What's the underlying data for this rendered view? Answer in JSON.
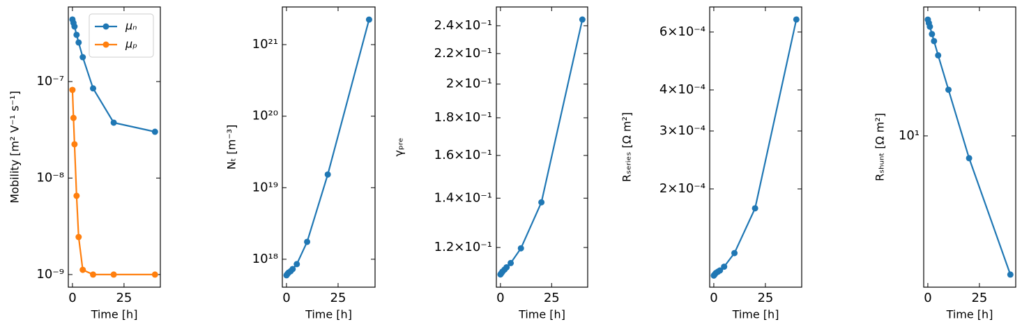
{
  "chart_data": [
    {
      "type": "line",
      "xlabel": "Time [h]",
      "ylabel": "Mobility [m² V⁻¹ s⁻¹]",
      "yscale": "log",
      "legend": "upper right",
      "x": [
        0,
        0.5,
        1,
        2,
        3,
        5,
        10,
        20,
        40
      ],
      "series": [
        {
          "name": "μₙ",
          "color": "#1f77b4",
          "values": [
            4.4e-07,
            4.05e-07,
            3.72e-07,
            3.05e-07,
            2.54e-07,
            1.79e-07,
            8.5e-08,
            3.75e-08,
            3.02e-08
          ]
        },
        {
          "name": "μₚ",
          "color": "#ff7f0e",
          "values": [
            8.2e-08,
            4.2e-08,
            2.24e-08,
            6.55e-09,
            2.45e-09,
            1.12e-09,
            1e-09,
            1e-09,
            1e-09
          ]
        }
      ],
      "xlim": [
        -2,
        42.6
      ],
      "xticks": [
        0,
        25
      ],
      "ylim": [
        7.4e-10,
        5.93e-07
      ],
      "yticks": [
        {
          "value": 1e-09,
          "label": "10⁻⁹"
        },
        {
          "value": 1e-08,
          "label": "10⁻⁸"
        },
        {
          "value": 1e-07,
          "label": "10⁻⁷"
        }
      ]
    },
    {
      "type": "line",
      "xlabel": "Time [h]",
      "ylabel": "Nₜ [m⁻³]",
      "yscale": "log",
      "x": [
        0,
        0.5,
        1,
        2,
        3,
        5,
        10,
        20,
        40
      ],
      "series": [
        {
          "color": "#1f77b4",
          "values": [
            5.97e+17,
            6.24e+17,
            6.5e+17,
            6.8e+17,
            7.3e+17,
            8.55e+17,
            1.75e+18,
            1.53e+19,
            2.24e+21
          ]
        }
      ],
      "xlim": [
        -2,
        42.9
      ],
      "xticks": [
        0,
        25
      ],
      "ylim": [
        4.07e+17,
        3.36e+21
      ],
      "yticks": [
        {
          "value": 1e+18,
          "label": "10¹⁸"
        },
        {
          "value": 1e+19,
          "label": "10¹⁹"
        },
        {
          "value": 1e+20,
          "label": "10²⁰"
        },
        {
          "value": 1e+21,
          "label": "10²¹"
        }
      ]
    },
    {
      "type": "line",
      "xlabel": "Time [h]",
      "ylabel": "γₚᵣₑ",
      "yscale": "log",
      "x": [
        0,
        0.5,
        1,
        2,
        3,
        5,
        10,
        20,
        40
      ],
      "series": [
        {
          "color": "#1f77b4",
          "values": [
            0.1103,
            0.1108,
            0.1113,
            0.112,
            0.1128,
            0.1143,
            0.1197,
            0.1382,
            0.2447
          ]
        }
      ],
      "xlim": [
        -2,
        42.6
      ],
      "xticks": [
        0,
        25
      ],
      "ylim": [
        0.106,
        0.2545
      ],
      "yticks": [
        {
          "value": 0.12,
          "label": "1.2×10⁻¹"
        },
        {
          "value": 0.14,
          "label": "1.4×10⁻¹"
        },
        {
          "value": 0.16,
          "label": "1.6×10⁻¹"
        },
        {
          "value": 0.18,
          "label": "1.8×10⁻¹"
        },
        {
          "value": 0.2,
          "label": "2×10⁻¹"
        },
        {
          "value": 0.22,
          "label": "2.2×10⁻¹"
        },
        {
          "value": 0.24,
          "label": "2.4×10⁻¹"
        }
      ]
    },
    {
      "type": "line",
      "xlabel": "Time [h]",
      "ylabel": "Rₛₑᵣᵢₑₛ [Ω m²]",
      "yscale": "log",
      "x": [
        0,
        0.5,
        1,
        2,
        3,
        5,
        10,
        20,
        40
      ],
      "series": [
        {
          "color": "#1f77b4",
          "values": [
            0.000109,
            0.00011,
            0.000111,
            0.000112,
            0.000113,
            0.000116,
            0.0001276,
            0.0001746,
            0.000655
          ]
        }
      ],
      "xlim": [
        -2,
        42.6
      ],
      "xticks": [
        0,
        25
      ],
      "ylim": [
        0.0001005,
        0.000715
      ],
      "yticks": [
        {
          "value": 0.0002,
          "label": "2×10⁻⁴"
        },
        {
          "value": 0.0003,
          "label": "3×10⁻⁴"
        },
        {
          "value": 0.0004,
          "label": "4×10⁻⁴"
        },
        {
          "value": 0.0006,
          "label": "6×10⁻⁴"
        }
      ]
    },
    {
      "type": "line",
      "xlabel": "Time [h]",
      "ylabel": "Rₛₕᵤₙₜ [Ω m²]",
      "yscale": "log",
      "x": [
        0,
        0.5,
        1,
        2,
        3,
        5,
        10,
        20,
        40
      ],
      "series": [
        {
          "color": "#1f77b4",
          "values": [
            21.7,
            21.2,
            20.7,
            19.7,
            18.8,
            17.1,
            13.6,
            8.62,
            3.97
          ]
        }
      ],
      "xlim": [
        -2,
        42.6
      ],
      "xticks": [
        0,
        25
      ],
      "ylim": [
        3.65,
        23.6
      ],
      "yticks": [
        {
          "value": 10,
          "label": "10¹"
        }
      ]
    }
  ]
}
